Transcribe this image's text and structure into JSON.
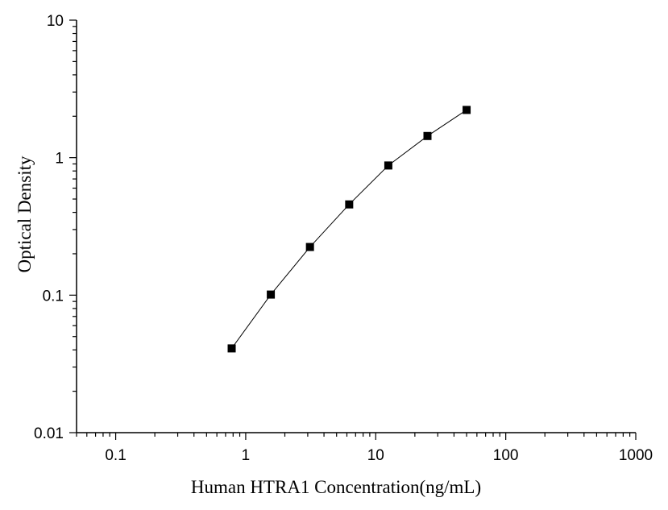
{
  "chart_data": {
    "type": "scatter",
    "xlabel": "Human HTRA1 Concentration(ng/mL)",
    "ylabel": "Optical Density",
    "x_scale": "log",
    "y_scale": "log",
    "xlim": [
      0.05,
      1000
    ],
    "ylim": [
      0.01,
      10
    ],
    "x_ticks": [
      0.1,
      1,
      10,
      100,
      1000
    ],
    "x_tick_labels": [
      "0.1",
      "1",
      "10",
      "100",
      "1000"
    ],
    "y_ticks": [
      0.01,
      0.1,
      1,
      10
    ],
    "y_tick_labels": [
      "0.01",
      "0.1",
      "1",
      "10"
    ],
    "grid": false,
    "connected": true,
    "marker": "square",
    "series": [
      {
        "x": [
          0.78,
          1.56,
          3.12,
          6.25,
          12.5,
          25,
          50
        ],
        "y": [
          0.041,
          0.101,
          0.224,
          0.457,
          0.877,
          1.437,
          2.223
        ]
      }
    ],
    "colors": {
      "line": "#000000",
      "marker": "#000000",
      "axis": "#000000"
    }
  }
}
